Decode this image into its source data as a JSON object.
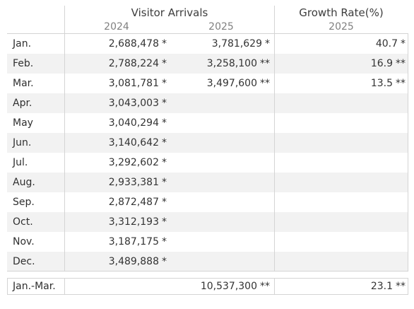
{
  "header": {
    "arrivals_title": "Visitor Arrivals",
    "arrivals_years": [
      "2024",
      "2025"
    ],
    "growth_title": "Growth Rate(%)",
    "growth_year": "2025"
  },
  "rows": [
    {
      "month": "Jan.",
      "y2024": "2,688,478",
      "m2024": "*",
      "y2025": "3,781,629",
      "m2025": "*",
      "growth": "40.7",
      "mgrowth": "*"
    },
    {
      "month": "Feb.",
      "y2024": "2,788,224",
      "m2024": "*",
      "y2025": "3,258,100",
      "m2025": "**",
      "growth": "16.9",
      "mgrowth": "**"
    },
    {
      "month": "Mar.",
      "y2024": "3,081,781",
      "m2024": "*",
      "y2025": "3,497,600",
      "m2025": "**",
      "growth": "13.5",
      "mgrowth": "**"
    },
    {
      "month": "Apr.",
      "y2024": "3,043,003",
      "m2024": "*"
    },
    {
      "month": "May",
      "y2024": "3,040,294",
      "m2024": "*"
    },
    {
      "month": "Jun.",
      "y2024": "3,140,642",
      "m2024": "*"
    },
    {
      "month": "Jul.",
      "y2024": "3,292,602",
      "m2024": "*"
    },
    {
      "month": "Aug.",
      "y2024": "2,933,381",
      "m2024": "*"
    },
    {
      "month": "Sep.",
      "y2024": "2,872,487",
      "m2024": "*"
    },
    {
      "month": "Oct.",
      "y2024": "3,312,193",
      "m2024": "*"
    },
    {
      "month": "Nov.",
      "y2024": "3,187,175",
      "m2024": "*"
    },
    {
      "month": "Dec.",
      "y2024": "3,489,888",
      "m2024": "*"
    }
  ],
  "total": {
    "label": "Jan.-Mar.",
    "y2025": "10,537,300",
    "m2025": "**",
    "growth": "23.1",
    "mgrowth": "**"
  }
}
